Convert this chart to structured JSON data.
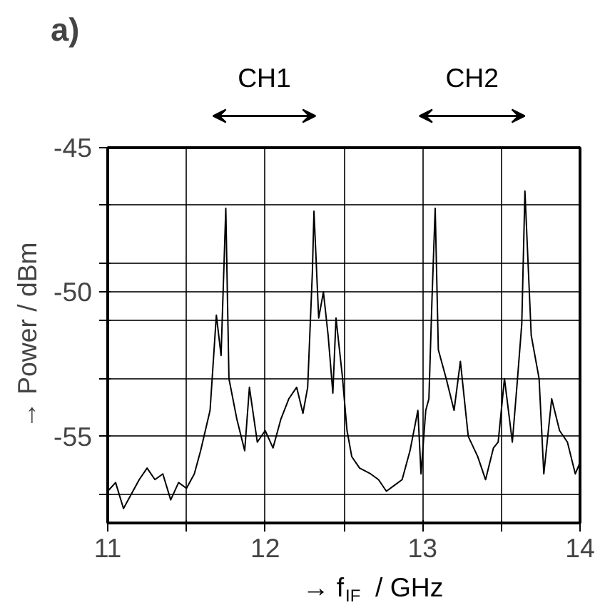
{
  "chart_data": {
    "type": "line",
    "title": "a)",
    "xlabel": "→ f$_{IF}$ / GHz",
    "ylabel": "→ Power / dBm",
    "x": [
      11.0,
      11.05,
      11.1,
      11.15,
      11.2,
      11.25,
      11.3,
      11.35,
      11.4,
      11.45,
      11.5,
      11.55,
      11.59,
      11.62,
      11.65,
      11.69,
      11.72,
      11.75,
      11.77,
      11.82,
      11.87,
      11.9,
      11.95,
      12.0,
      12.05,
      12.1,
      12.15,
      12.2,
      12.24,
      12.27,
      12.3,
      12.31,
      12.34,
      12.37,
      12.4,
      12.43,
      12.45,
      12.49,
      12.52,
      12.55,
      12.6,
      12.67,
      12.72,
      12.77,
      12.82,
      12.87,
      12.92,
      12.97,
      12.99,
      13.02,
      13.04,
      13.06,
      13.08,
      13.1,
      13.15,
      13.2,
      13.24,
      13.29,
      13.35,
      13.4,
      13.45,
      13.48,
      13.52,
      13.57,
      13.6,
      13.63,
      13.65,
      13.69,
      13.74,
      13.77,
      13.82,
      13.87,
      13.92,
      13.97,
      14.0
    ],
    "series": [
      {
        "color": "#000000",
        "values": [
          -56.9,
          -56.6,
          -57.5,
          -57.0,
          -56.5,
          -56.1,
          -56.5,
          -56.3,
          -57.2,
          -56.6,
          -56.8,
          -56.3,
          -55.5,
          -54.8,
          -54.1,
          -50.8,
          -52.2,
          -47.1,
          -53.0,
          -54.4,
          -55.5,
          -53.3,
          -55.2,
          -54.8,
          -55.4,
          -54.4,
          -53.7,
          -53.3,
          -54.2,
          -53.3,
          -49.3,
          -47.2,
          -50.9,
          -50.0,
          -51.5,
          -53.5,
          -50.9,
          -52.9,
          -54.8,
          -55.7,
          -56.1,
          -56.3,
          -56.5,
          -56.9,
          -56.7,
          -56.5,
          -55.5,
          -54.1,
          -56.3,
          -54.1,
          -53.7,
          -50.2,
          -47.1,
          -52.0,
          -53.0,
          -54.1,
          -52.4,
          -55.0,
          -55.7,
          -56.5,
          -55.4,
          -55.2,
          -53.0,
          -55.2,
          -53.2,
          -51.1,
          -46.5,
          -51.5,
          -53.0,
          -56.3,
          -53.7,
          -54.8,
          -55.2,
          -56.3,
          -55.9
        ]
      }
    ],
    "xlim": [
      11,
      14
    ],
    "ylim": [
      -58,
      -45
    ],
    "xticks": [
      11,
      {
        "value": 11.5,
        "label": null
      },
      12,
      {
        "value": 12.5,
        "label": null
      },
      13,
      {
        "value": 13.5,
        "label": null
      },
      14
    ],
    "yticks": [
      -45,
      {
        "value": -47,
        "label": null
      },
      {
        "value": -49,
        "label": null
      },
      -50,
      {
        "value": -51,
        "label": null
      },
      {
        "value": -53,
        "label": null
      },
      -55,
      {
        "value": -57,
        "label": null
      }
    ],
    "grid": true,
    "line_style": "solid",
    "annotations": [
      "CH1",
      "CH2"
    ]
  }
}
